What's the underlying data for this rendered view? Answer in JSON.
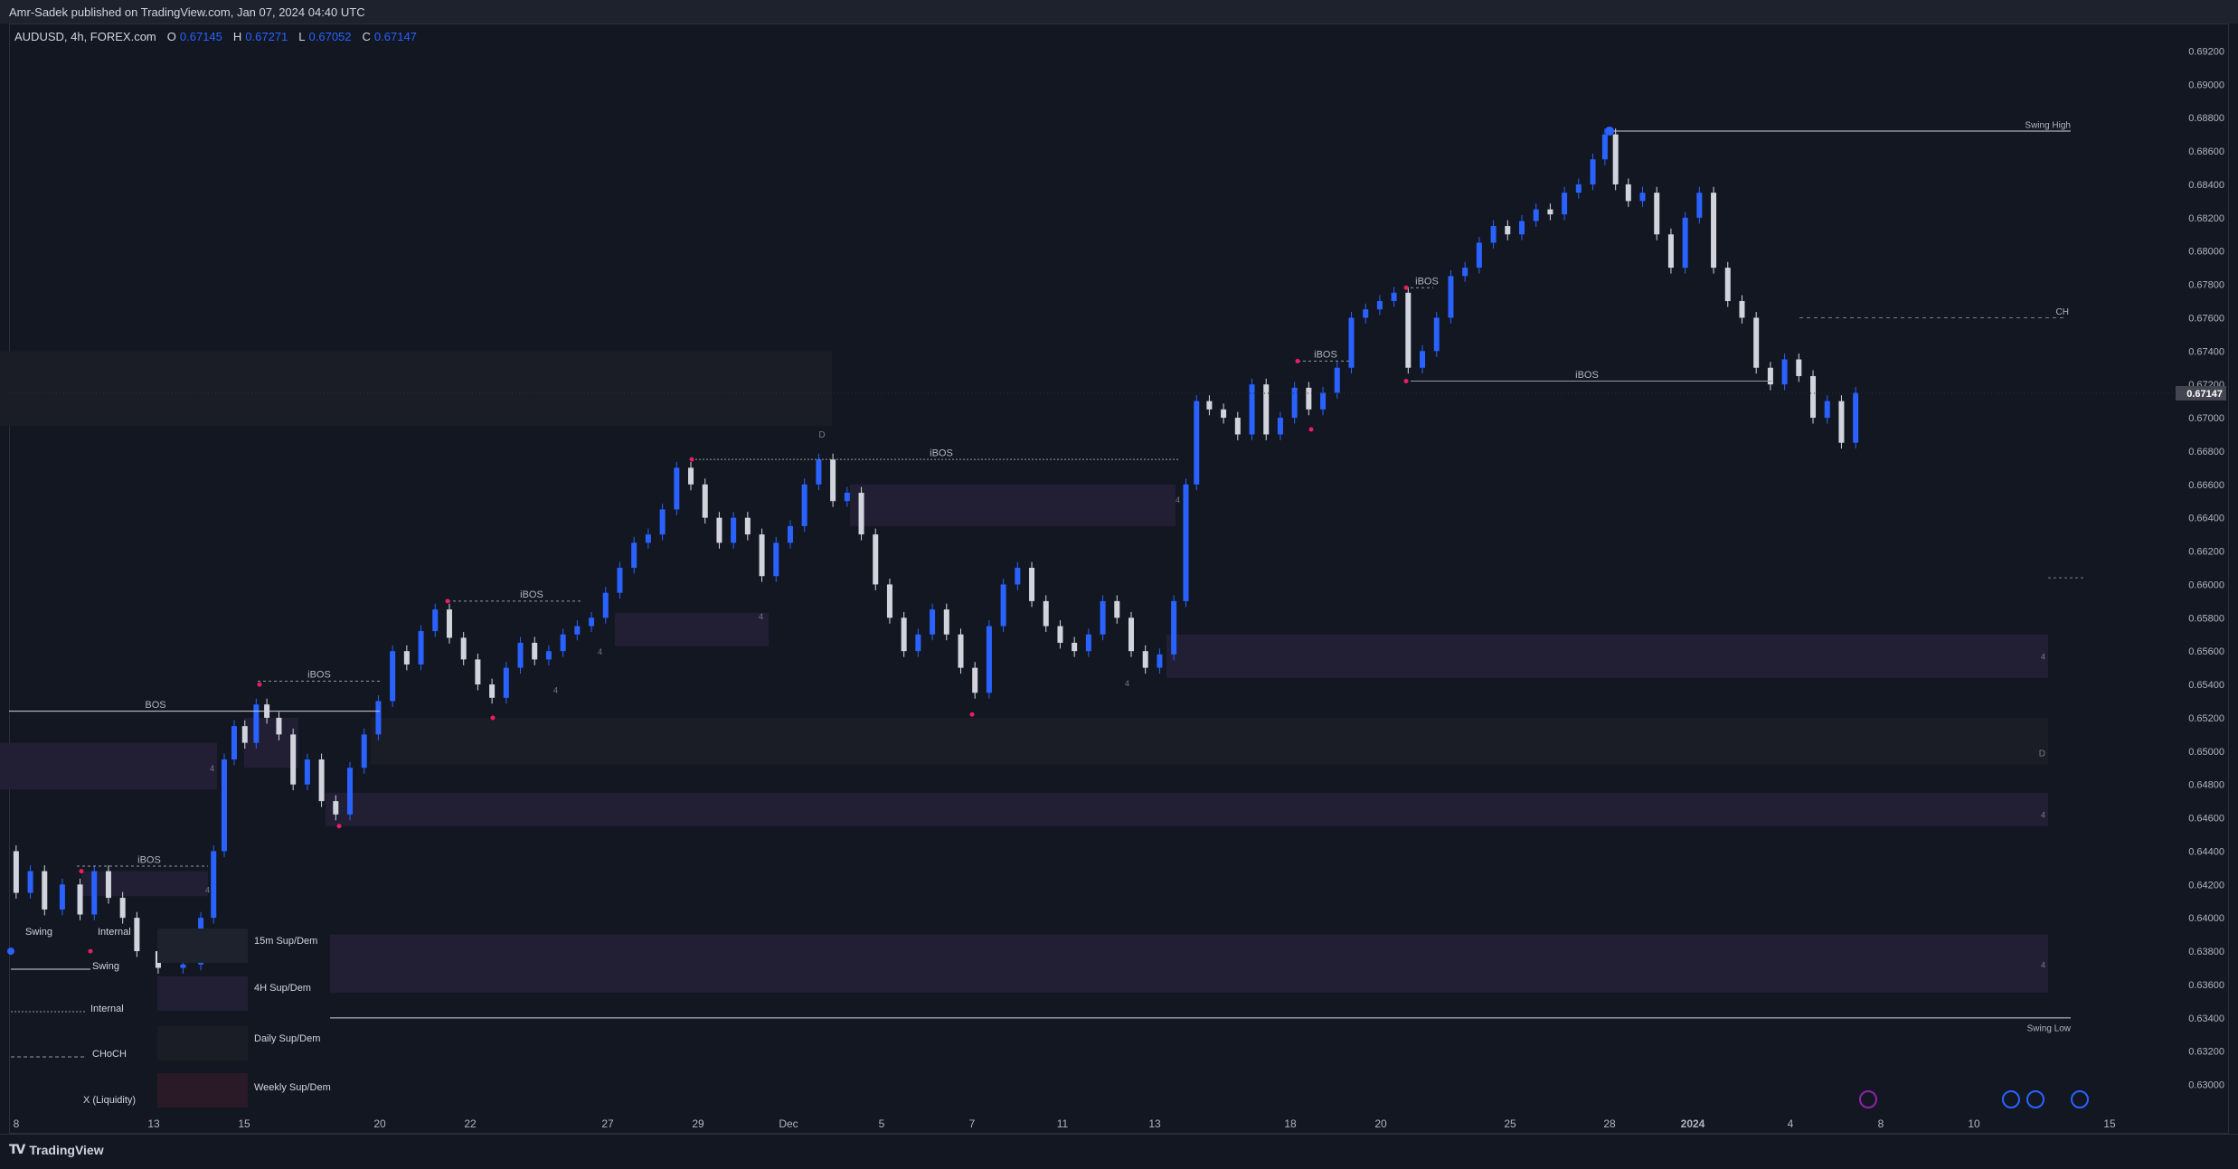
{
  "header": {
    "publisher": "Amr-Sadek published on TradingView.com, Jan 07, 2024 04:40 UTC"
  },
  "legend": {
    "symbol": "AUDUSD, 4h, FOREX.com",
    "open_label": "O",
    "open": "0.67145",
    "high_label": "H",
    "high": "0.67271",
    "low_label": "L",
    "low": "0.67052",
    "close_label": "C",
    "close": "0.67147"
  },
  "footer": {
    "brand": "TradingView"
  },
  "colors": {
    "background": "#131722",
    "bull": "#2962ff",
    "bear": "#d1d4dc",
    "zone": "#221f35",
    "zone_dark": "#1a1d26",
    "accent_red": "#e91e63",
    "price_label_bg": "#434651"
  },
  "chart_data": {
    "type": "candlestick",
    "symbol": "AUDUSD",
    "timeframe": "4h",
    "ylim": [
      0.629,
      0.693
    ],
    "y_ticks": [
      "0.69200",
      "0.69000",
      "0.68800",
      "0.68600",
      "0.68400",
      "0.68200",
      "0.68000",
      "0.67800",
      "0.67600",
      "0.67400",
      "0.67200",
      "0.67000",
      "0.66800",
      "0.66600",
      "0.66400",
      "0.66200",
      "0.66000",
      "0.65800",
      "0.65600",
      "0.65400",
      "0.65200",
      "0.65000",
      "0.64800",
      "0.64600",
      "0.64400",
      "0.64200",
      "0.64000",
      "0.63800",
      "0.63600",
      "0.63400",
      "0.63200",
      "0.63000"
    ],
    "x_ticks": [
      "8",
      "13",
      "15",
      "20",
      "22",
      "27",
      "29",
      "Dec",
      "5",
      "7",
      "11",
      "13",
      "18",
      "20",
      "25",
      "28",
      "2024",
      "4",
      "8",
      "10",
      "15"
    ],
    "current_price": "0.67147",
    "path": [
      [
        0,
        0.644
      ],
      [
        10,
        0.6415
      ],
      [
        20,
        0.6428
      ],
      [
        30,
        0.6405
      ],
      [
        45,
        0.642
      ],
      [
        55,
        0.6402
      ],
      [
        65,
        0.6428
      ],
      [
        75,
        0.6412
      ],
      [
        85,
        0.64
      ],
      [
        95,
        0.638
      ],
      [
        115,
        0.637
      ],
      [
        130,
        0.6372
      ],
      [
        140,
        0.64
      ],
      [
        148,
        0.644
      ],
      [
        155,
        0.6495
      ],
      [
        162,
        0.6515
      ],
      [
        170,
        0.6505
      ],
      [
        178,
        0.6528
      ],
      [
        185,
        0.652
      ],
      [
        195,
        0.651
      ],
      [
        205,
        0.648
      ],
      [
        215,
        0.6495
      ],
      [
        225,
        0.647
      ],
      [
        235,
        0.6462
      ],
      [
        245,
        0.649
      ],
      [
        255,
        0.651
      ],
      [
        265,
        0.653
      ],
      [
        275,
        0.656
      ],
      [
        285,
        0.6552
      ],
      [
        295,
        0.6572
      ],
      [
        305,
        0.6585
      ],
      [
        315,
        0.6568
      ],
      [
        325,
        0.6555
      ],
      [
        335,
        0.654
      ],
      [
        345,
        0.6532
      ],
      [
        355,
        0.655
      ],
      [
        365,
        0.6565
      ],
      [
        375,
        0.6555
      ],
      [
        385,
        0.656
      ],
      [
        395,
        0.657
      ],
      [
        405,
        0.6575
      ],
      [
        415,
        0.658
      ],
      [
        425,
        0.6595
      ],
      [
        435,
        0.661
      ],
      [
        445,
        0.6625
      ],
      [
        455,
        0.663
      ],
      [
        465,
        0.6645
      ],
      [
        475,
        0.667
      ],
      [
        485,
        0.666
      ],
      [
        495,
        0.664
      ],
      [
        505,
        0.6625
      ],
      [
        515,
        0.664
      ],
      [
        525,
        0.663
      ],
      [
        535,
        0.6605
      ],
      [
        545,
        0.6625
      ],
      [
        555,
        0.6635
      ],
      [
        565,
        0.666
      ],
      [
        575,
        0.6675
      ],
      [
        585,
        0.665
      ],
      [
        595,
        0.6655
      ],
      [
        605,
        0.663
      ],
      [
        615,
        0.66
      ],
      [
        625,
        0.658
      ],
      [
        635,
        0.656
      ],
      [
        645,
        0.657
      ],
      [
        655,
        0.6585
      ],
      [
        665,
        0.657
      ],
      [
        675,
        0.655
      ],
      [
        685,
        0.6535
      ],
      [
        695,
        0.6575
      ],
      [
        705,
        0.66
      ],
      [
        715,
        0.661
      ],
      [
        725,
        0.659
      ],
      [
        735,
        0.6575
      ],
      [
        745,
        0.6565
      ],
      [
        755,
        0.656
      ],
      [
        765,
        0.657
      ],
      [
        775,
        0.659
      ],
      [
        785,
        0.658
      ],
      [
        795,
        0.656
      ],
      [
        805,
        0.655
      ],
      [
        815,
        0.6558
      ],
      [
        825,
        0.659
      ],
      [
        832,
        0.666
      ],
      [
        840,
        0.671
      ],
      [
        850,
        0.6705
      ],
      [
        860,
        0.67
      ],
      [
        870,
        0.669
      ],
      [
        880,
        0.672
      ],
      [
        890,
        0.669
      ],
      [
        900,
        0.67
      ],
      [
        910,
        0.6718
      ],
      [
        920,
        0.6705
      ],
      [
        930,
        0.6715
      ],
      [
        940,
        0.673
      ],
      [
        950,
        0.676
      ],
      [
        960,
        0.6765
      ],
      [
        970,
        0.677
      ],
      [
        980,
        0.6775
      ],
      [
        990,
        0.673
      ],
      [
        1000,
        0.674
      ],
      [
        1010,
        0.676
      ],
      [
        1020,
        0.6785
      ],
      [
        1030,
        0.679
      ],
      [
        1040,
        0.6805
      ],
      [
        1050,
        0.6815
      ],
      [
        1060,
        0.681
      ],
      [
        1070,
        0.6818
      ],
      [
        1080,
        0.6825
      ],
      [
        1090,
        0.6822
      ],
      [
        1100,
        0.6835
      ],
      [
        1110,
        0.684
      ],
      [
        1120,
        0.6855
      ],
      [
        1127,
        0.687
      ],
      [
        1135,
        0.684
      ],
      [
        1145,
        0.683
      ],
      [
        1155,
        0.6835
      ],
      [
        1165,
        0.681
      ],
      [
        1175,
        0.679
      ],
      [
        1185,
        0.682
      ],
      [
        1195,
        0.6835
      ],
      [
        1205,
        0.679
      ],
      [
        1215,
        0.677
      ],
      [
        1225,
        0.676
      ],
      [
        1235,
        0.673
      ],
      [
        1245,
        0.672
      ],
      [
        1255,
        0.6735
      ],
      [
        1265,
        0.6725
      ],
      [
        1275,
        0.67
      ],
      [
        1285,
        0.671
      ],
      [
        1295,
        0.6685
      ],
      [
        1305,
        0.6715
      ]
    ]
  },
  "annotations": {
    "swing_high": "Swing High",
    "swing_low": "Swing Low",
    "bos": "BOS",
    "ibos": "iBOS",
    "choch": "CH",
    "d": "D",
    "four": "4"
  },
  "settings_panel": {
    "swing": "Swing",
    "internal": "Internal",
    "swing_line": "Swing",
    "internal_line": "Internal",
    "choch": "CHoCH",
    "liquidity": "X (Liquidity)",
    "sd_15m": "15m Sup/Dem",
    "sd_4h": "4H Sup/Dem",
    "sd_daily": "Daily Sup/Dem",
    "sd_weekly": "Weekly Sup/Dem"
  }
}
